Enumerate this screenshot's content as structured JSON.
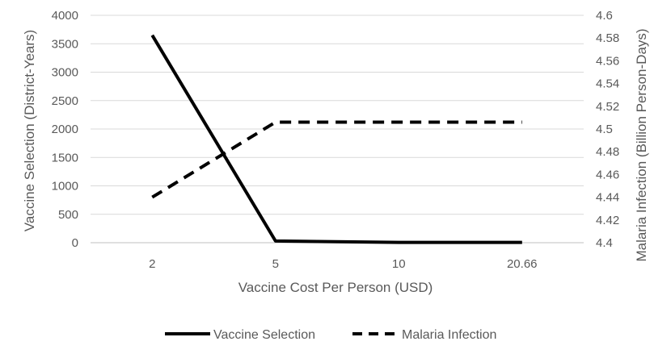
{
  "chart_data": {
    "type": "line",
    "categories": [
      "2",
      "5",
      "10",
      "20.66"
    ],
    "xlabel": "Vaccine Cost Per Person (USD)",
    "ylabel": "Vaccine Selection (District-Years)",
    "y2label": "Malaria Infection (Billion Person-Days)",
    "ylim": [
      0,
      4000
    ],
    "y2lim": [
      4.4,
      4.6
    ],
    "yticks": [
      "0",
      "500",
      "1000",
      "1500",
      "2000",
      "2500",
      "3000",
      "3500",
      "4000"
    ],
    "y2ticks": [
      "4.4",
      "4.42",
      "4.44",
      "4.46",
      "4.48",
      "4.5",
      "4.52",
      "4.54",
      "4.56",
      "4.58",
      "4.6"
    ],
    "grid": true,
    "legend_position": "bottom",
    "series": [
      {
        "name": "Vaccine Selection",
        "axis": "left",
        "style": "solid",
        "color": "#000000",
        "values": [
          3650,
          30,
          5,
          5
        ]
      },
      {
        "name": "Malaria Infection",
        "axis": "right",
        "style": "dashed",
        "color": "#000000",
        "values": [
          4.44,
          4.506,
          4.506,
          4.506
        ]
      }
    ]
  }
}
